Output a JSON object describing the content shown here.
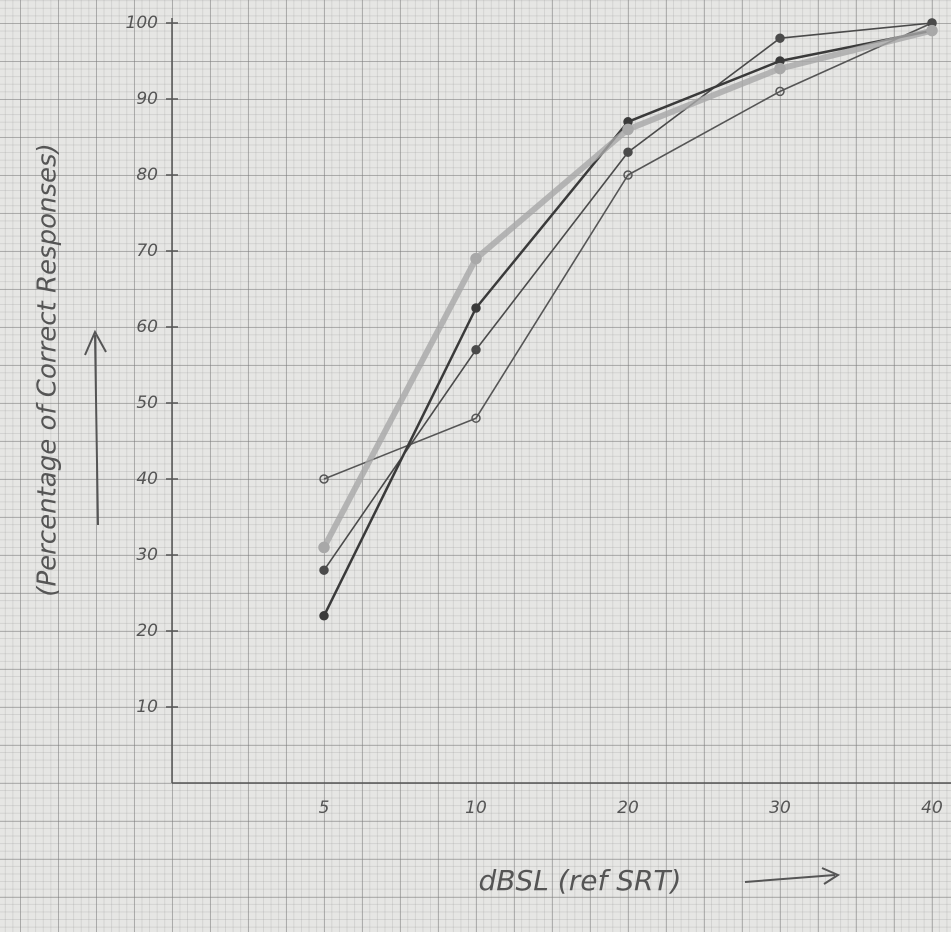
{
  "chart_data": {
    "type": "line",
    "x_label": "dBSL (ref SRT)",
    "y_label": "(Percentage of Correct Responses)",
    "categories": [
      "5",
      "10",
      "20",
      "30",
      "40"
    ],
    "series": [
      {
        "color": "#555555",
        "values": [
          40,
          48,
          80,
          91,
          100
        ]
      },
      {
        "color": "#4a4a4a",
        "values": [
          28,
          57,
          83,
          98,
          100
        ]
      },
      {
        "color": "#3a3a3a",
        "values": [
          22,
          62.5,
          87,
          95,
          99
        ]
      },
      {
        "color": "#a8a8a8",
        "values": [
          31,
          69,
          86,
          94,
          99
        ]
      }
    ],
    "ylim": [
      0,
      100
    ],
    "yticks": [
      10,
      20,
      30,
      40,
      50,
      60,
      70,
      80,
      90,
      100
    ]
  }
}
